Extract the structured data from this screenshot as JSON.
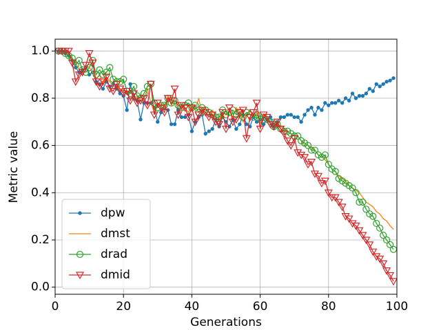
{
  "chart_data": {
    "type": "line",
    "x_label": "Generations",
    "y_label": "Metric value",
    "x": [
      1,
      2,
      3,
      4,
      5,
      6,
      7,
      8,
      9,
      10,
      11,
      12,
      13,
      14,
      15,
      16,
      17,
      18,
      19,
      20,
      21,
      22,
      23,
      24,
      25,
      26,
      27,
      28,
      29,
      30,
      31,
      32,
      33,
      34,
      35,
      36,
      37,
      38,
      39,
      40,
      41,
      42,
      43,
      44,
      45,
      46,
      47,
      48,
      49,
      50,
      51,
      52,
      53,
      54,
      55,
      56,
      57,
      58,
      59,
      60,
      61,
      62,
      63,
      64,
      65,
      66,
      67,
      68,
      69,
      70,
      71,
      72,
      73,
      74,
      75,
      76,
      77,
      78,
      79,
      80,
      81,
      82,
      83,
      84,
      85,
      86,
      87,
      88,
      89,
      90,
      91,
      92,
      93,
      94,
      95,
      96,
      97,
      98,
      99
    ],
    "series": [
      {
        "name": "dpw",
        "color": "#1f77b4",
        "marker": "dot",
        "values": [
          1.0,
          1.0,
          0.99,
          0.98,
          0.96,
          0.93,
          0.91,
          0.92,
          0.93,
          0.9,
          0.91,
          0.87,
          0.86,
          0.84,
          0.87,
          0.85,
          0.86,
          0.84,
          0.82,
          0.81,
          0.75,
          0.86,
          0.8,
          0.79,
          0.71,
          0.78,
          0.78,
          0.78,
          0.76,
          0.7,
          0.74,
          0.76,
          0.75,
          0.69,
          0.69,
          0.75,
          0.72,
          0.72,
          0.73,
          0.66,
          0.7,
          0.72,
          0.73,
          0.65,
          0.66,
          0.67,
          0.71,
          0.68,
          0.72,
          0.7,
          0.68,
          0.71,
          0.67,
          0.69,
          0.73,
          0.69,
          0.68,
          0.72,
          0.7,
          0.71,
          0.69,
          0.71,
          0.72,
          0.68,
          0.7,
          0.72,
          0.72,
          0.73,
          0.73,
          0.72,
          0.72,
          0.7,
          0.73,
          0.75,
          0.76,
          0.73,
          0.76,
          0.75,
          0.78,
          0.77,
          0.78,
          0.78,
          0.79,
          0.78,
          0.8,
          0.79,
          0.82,
          0.8,
          0.81,
          0.81,
          0.82,
          0.84,
          0.83,
          0.86,
          0.85,
          0.86,
          0.87,
          0.875,
          0.885
        ]
      },
      {
        "name": "dmst",
        "color": "#ff7f0e",
        "marker": "none",
        "values": [
          1.0,
          1.0,
          1.0,
          0.99,
          0.97,
          0.95,
          0.92,
          0.9,
          0.94,
          0.93,
          0.91,
          0.88,
          0.9,
          0.86,
          0.89,
          0.87,
          0.85,
          0.86,
          0.83,
          0.84,
          0.82,
          0.83,
          0.8,
          0.81,
          0.79,
          0.8,
          0.84,
          0.78,
          0.74,
          0.77,
          0.78,
          0.76,
          0.81,
          0.77,
          0.79,
          0.78,
          0.75,
          0.76,
          0.74,
          0.77,
          0.75,
          0.8,
          0.73,
          0.76,
          0.74,
          0.75,
          0.72,
          0.71,
          0.74,
          0.73,
          0.75,
          0.72,
          0.76,
          0.74,
          0.7,
          0.73,
          0.75,
          0.72,
          0.74,
          0.69,
          0.72,
          0.71,
          0.7,
          0.68,
          0.69,
          0.68,
          0.67,
          0.66,
          0.65,
          0.64,
          0.64,
          0.62,
          0.6,
          0.6,
          0.59,
          0.58,
          0.56,
          0.55,
          0.54,
          0.52,
          0.5,
          0.49,
          0.47,
          0.46,
          0.45,
          0.43,
          0.42,
          0.41,
          0.4,
          0.38,
          0.36,
          0.35,
          0.34,
          0.32,
          0.31,
          0.29,
          0.28,
          0.26,
          0.245
        ]
      },
      {
        "name": "drad",
        "color": "#2ca02c",
        "marker": "circle",
        "values": [
          1.0,
          1.0,
          0.99,
          0.98,
          0.97,
          0.94,
          0.96,
          0.92,
          0.91,
          0.93,
          0.96,
          0.9,
          0.92,
          0.9,
          0.91,
          0.93,
          0.88,
          0.87,
          0.87,
          0.88,
          0.83,
          0.82,
          0.85,
          0.81,
          0.8,
          0.82,
          0.85,
          0.86,
          0.78,
          0.76,
          0.77,
          0.77,
          0.8,
          0.78,
          0.79,
          0.77,
          0.76,
          0.77,
          0.78,
          0.76,
          0.77,
          0.74,
          0.76,
          0.75,
          0.74,
          0.73,
          0.72,
          0.72,
          0.75,
          0.73,
          0.74,
          0.75,
          0.73,
          0.74,
          0.72,
          0.74,
          0.73,
          0.72,
          0.73,
          0.71,
          0.72,
          0.71,
          0.7,
          0.68,
          0.69,
          0.67,
          0.66,
          0.66,
          0.65,
          0.64,
          0.64,
          0.62,
          0.61,
          0.6,
          0.58,
          0.58,
          0.56,
          0.55,
          0.56,
          0.52,
          0.5,
          0.49,
          0.46,
          0.45,
          0.44,
          0.43,
          0.42,
          0.4,
          0.36,
          0.36,
          0.33,
          0.31,
          0.3,
          0.27,
          0.25,
          0.22,
          0.2,
          0.18,
          0.16
        ]
      },
      {
        "name": "dmid",
        "color": "#d62728",
        "marker": "triangle",
        "values": [
          1.0,
          1.0,
          1.0,
          1.0,
          0.95,
          0.87,
          0.9,
          0.91,
          0.94,
          0.99,
          0.95,
          0.87,
          0.85,
          0.87,
          0.89,
          0.84,
          0.83,
          0.86,
          0.84,
          0.82,
          0.83,
          0.79,
          0.82,
          0.78,
          0.79,
          0.8,
          0.77,
          0.86,
          0.73,
          0.78,
          0.76,
          0.74,
          0.8,
          0.79,
          0.84,
          0.73,
          0.77,
          0.76,
          0.72,
          0.76,
          0.7,
          0.73,
          0.75,
          0.74,
          0.72,
          0.73,
          0.7,
          0.69,
          0.74,
          0.67,
          0.76,
          0.7,
          0.71,
          0.74,
          0.75,
          0.63,
          0.72,
          0.74,
          0.78,
          0.67,
          0.73,
          0.72,
          0.69,
          0.68,
          0.7,
          0.67,
          0.65,
          0.62,
          0.6,
          0.63,
          0.57,
          0.56,
          0.55,
          0.52,
          0.53,
          0.48,
          0.47,
          0.44,
          0.45,
          0.4,
          0.38,
          0.38,
          0.36,
          0.34,
          0.3,
          0.29,
          0.27,
          0.26,
          0.24,
          0.22,
          0.2,
          0.18,
          0.15,
          0.13,
          0.12,
          0.1,
          0.07,
          0.05,
          0.025
        ]
      }
    ],
    "xlim": [
      0,
      100
    ],
    "xticks": [
      0,
      20,
      40,
      60,
      80,
      100
    ],
    "ylim": [
      -0.03,
      1.05
    ],
    "yticks": [
      {
        "value": 0,
        "label": "0.0"
      },
      {
        "value": 0.2,
        "label": "0.2"
      },
      {
        "value": 0.4,
        "label": "0.4"
      },
      {
        "value": 0.6,
        "label": "0.6"
      },
      {
        "value": 0.8,
        "label": "0.8"
      },
      {
        "value": 1,
        "label": "1.0"
      }
    ],
    "grid": true,
    "legend": "lower left"
  }
}
